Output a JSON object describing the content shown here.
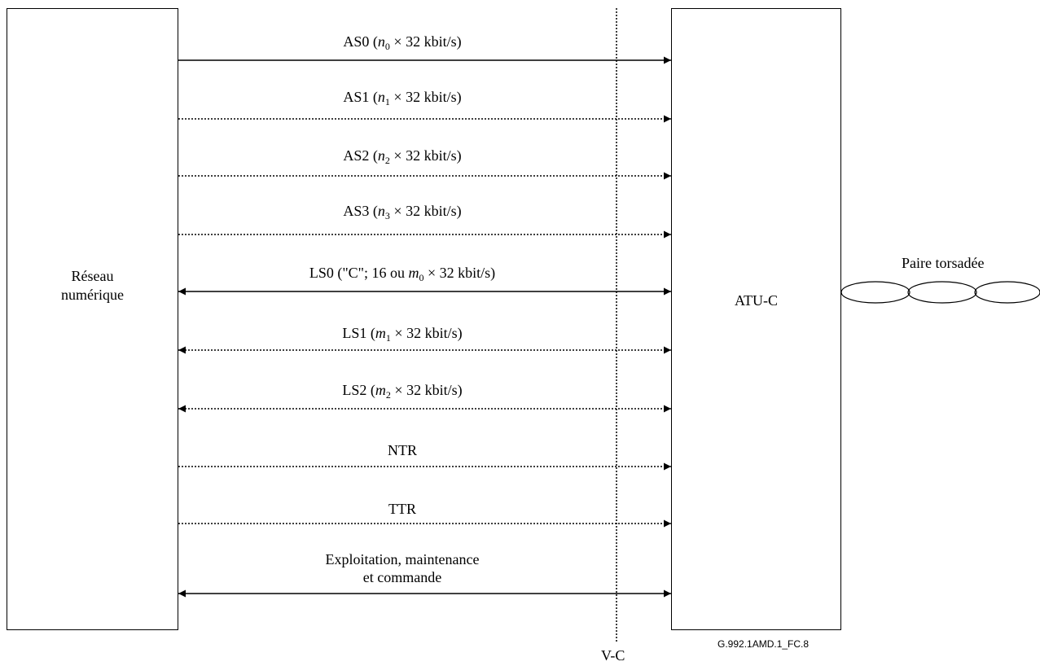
{
  "left_box": {
    "line1": "Réseau",
    "line2": "numérique"
  },
  "right_box": {
    "label": "ATU-C"
  },
  "signals": [
    {
      "id": "as0",
      "prefix": "AS0 (",
      "var": "n",
      "sub": "0",
      "suffix": " × 32 kbit/s)",
      "style": "solid",
      "dir": "right"
    },
    {
      "id": "as1",
      "prefix": "AS1 (",
      "var": "n",
      "sub": "1",
      "suffix": " × 32 kbit/s)",
      "style": "dotted",
      "dir": "right"
    },
    {
      "id": "as2",
      "prefix": "AS2 (",
      "var": "n",
      "sub": "2",
      "suffix": " × 32 kbit/s)",
      "style": "dotted",
      "dir": "right"
    },
    {
      "id": "as3",
      "prefix": "AS3 (",
      "var": "n",
      "sub": "3",
      "suffix": " × 32 kbit/s)",
      "style": "dotted",
      "dir": "right"
    },
    {
      "id": "ls0",
      "prefix": "LS0 (\"C\"; 16 ou ",
      "var": "m",
      "sub": "0",
      "suffix": " × 32 kbit/s)",
      "style": "solid",
      "dir": "both"
    },
    {
      "id": "ls1",
      "prefix": "LS1 (",
      "var": "m",
      "sub": "1",
      "suffix": " × 32 kbit/s)",
      "style": "dotted",
      "dir": "both"
    },
    {
      "id": "ls2",
      "prefix": "LS2 (",
      "var": "m",
      "sub": "2",
      "suffix": " × 32 kbit/s)",
      "style": "dotted",
      "dir": "both"
    },
    {
      "id": "ntr",
      "prefix": "NTR",
      "var": "",
      "sub": "",
      "suffix": "",
      "style": "dotted",
      "dir": "right"
    },
    {
      "id": "ttr",
      "prefix": "TTR",
      "var": "",
      "sub": "",
      "suffix": "",
      "style": "dotted",
      "dir": "right"
    },
    {
      "id": "oam",
      "prefix": "Exploitation, maintenance",
      "prefix2": "et commande",
      "var": "",
      "sub": "",
      "suffix": "",
      "style": "solid",
      "dir": "both"
    }
  ],
  "interface_label": "V-C",
  "line_label": "Paire torsadée",
  "figure_id": "G.992.1AMD.1_FC.8"
}
